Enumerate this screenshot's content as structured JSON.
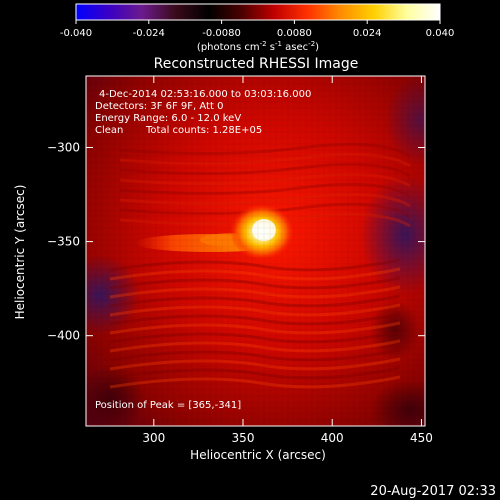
{
  "colorbar": {
    "tick_labels": [
      "-0.040",
      "-0.024",
      "-0.0080",
      "0.0080",
      "0.024",
      "0.040"
    ],
    "unit_label_parts": [
      "(photons cm",
      "-2",
      " s",
      "-1",
      " asec",
      "-2",
      ")"
    ],
    "stops": [
      "#0000ff",
      "#3a00c4",
      "#6c1a8c",
      "#3a0a1a",
      "#000000",
      "#4a0000",
      "#c00000",
      "#ff3000",
      "#ff8c00",
      "#ffd000",
      "#ffffa0",
      "#ffffff"
    ]
  },
  "title": "Reconstructed RHESSI Image",
  "info": {
    "line1": "4-Dec-2014 02:53:16.000 to 03:03:16.000",
    "line2": "Detectors: 3F 6F 9F, Att 0",
    "line3": "Energy Range: 6.0 - 12.0 keV",
    "line4_a": "Clean",
    "line4_b": "Total counts: 1.28E+05"
  },
  "peak_label": "Position of Peak = [365,-341]",
  "axes": {
    "xlabel": "Heliocentric X (arcsec)",
    "ylabel": "Heliocentric Y (arcsec)",
    "xlim": [
      262,
      452
    ],
    "ylim": [
      -448,
      -262
    ],
    "xticks": [
      300,
      350,
      400,
      450
    ],
    "yticks": [
      -300,
      -350,
      -400
    ]
  },
  "footer_timestamp": "20-Aug-2017 02:33"
}
